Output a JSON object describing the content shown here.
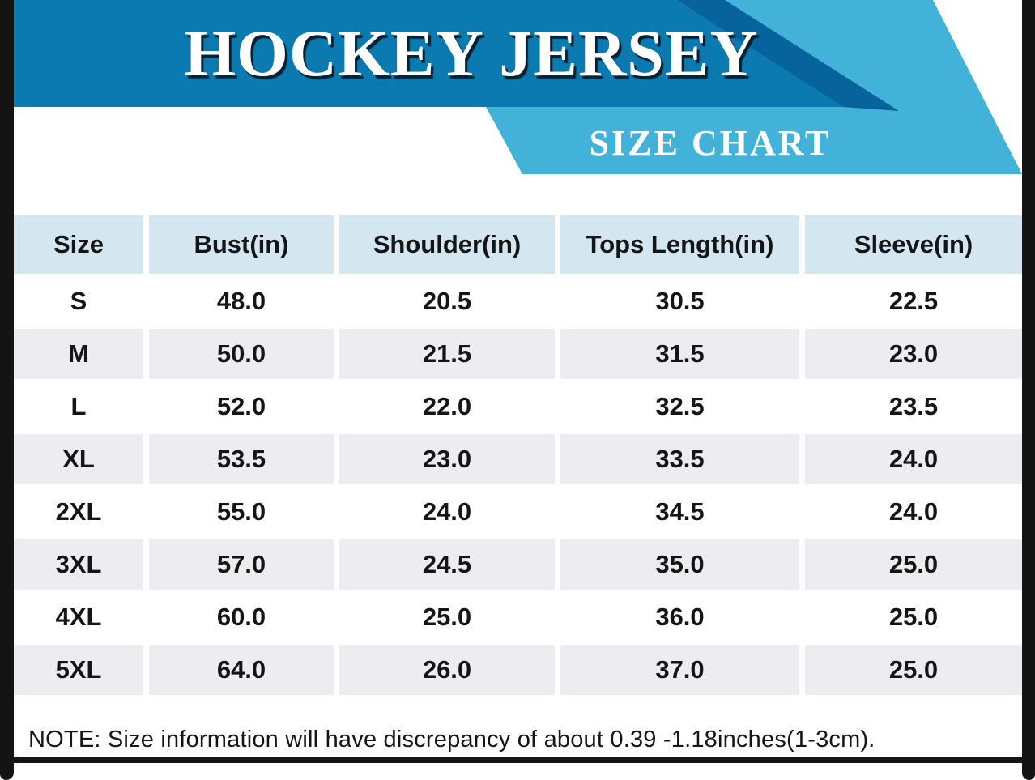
{
  "header": {
    "title": "HOCKEY JERSEY",
    "subtitle": "SIZE CHART",
    "colors": {
      "banner_blue": "#0a7ab1",
      "banner_shadow_blue": "#07639b",
      "ribbon_light_blue": "#43b2d9",
      "frame_black": "#141414"
    }
  },
  "table": {
    "columns": [
      "Size",
      "Bust(in)",
      "Shoulder(in)",
      "Tops Length(in)",
      "Sleeve(in)"
    ],
    "header_bg": "#d4e6f0",
    "stripe_bg": "#ededf1",
    "rows": [
      {
        "size": "S",
        "values": [
          "48.0",
          "20.5",
          "30.5",
          "22.5"
        ]
      },
      {
        "size": "M",
        "values": [
          "50.0",
          "21.5",
          "31.5",
          "23.0"
        ]
      },
      {
        "size": "L",
        "values": [
          "52.0",
          "22.0",
          "32.5",
          "23.5"
        ]
      },
      {
        "size": "XL",
        "values": [
          "53.5",
          "23.0",
          "33.5",
          "24.0"
        ]
      },
      {
        "size": "2XL",
        "values": [
          "55.0",
          "24.0",
          "34.5",
          "24.0"
        ]
      },
      {
        "size": "3XL",
        "values": [
          "57.0",
          "24.5",
          "35.0",
          "25.0"
        ]
      },
      {
        "size": "4XL",
        "values": [
          "60.0",
          "25.0",
          "36.0",
          "25.0"
        ]
      },
      {
        "size": "5XL",
        "values": [
          "64.0",
          "26.0",
          "37.0",
          "25.0"
        ]
      }
    ]
  },
  "note": "NOTE: Size information will have discrepancy of about 0.39 -1.18inches(1-3cm)."
}
